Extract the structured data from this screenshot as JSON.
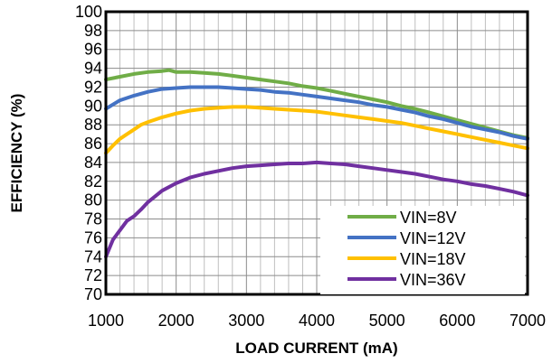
{
  "chart_data": {
    "type": "line",
    "title": "",
    "xlabel": "LOAD CURRENT (mA)",
    "ylabel": "EFFICIENCY (%)",
    "xlim": [
      1000,
      7000
    ],
    "ylim": [
      70,
      100
    ],
    "xticks": [
      1000,
      2000,
      3000,
      4000,
      5000,
      6000,
      7000
    ],
    "yticks": [
      70,
      72,
      74,
      76,
      78,
      80,
      82,
      84,
      86,
      88,
      90,
      92,
      94,
      96,
      98,
      100
    ],
    "x_minor_step": 200,
    "grid": true,
    "legend_position": "bottom-right",
    "series": [
      {
        "name": "VIN=8V",
        "color": "#70ad47",
        "x": [
          1000,
          1200,
          1400,
          1600,
          1800,
          1900,
          2000,
          2200,
          2400,
          2600,
          2800,
          3000,
          3200,
          3400,
          3600,
          3800,
          4000,
          4200,
          4400,
          4600,
          4800,
          5000,
          5200,
          5400,
          5600,
          5800,
          6000,
          6200,
          6400,
          6600,
          6800,
          7000
        ],
        "y": [
          92.8,
          93.1,
          93.4,
          93.6,
          93.7,
          93.8,
          93.6,
          93.6,
          93.5,
          93.4,
          93.2,
          93.0,
          92.8,
          92.6,
          92.4,
          92.1,
          91.9,
          91.6,
          91.3,
          91.0,
          90.7,
          90.4,
          90.0,
          89.7,
          89.3,
          88.9,
          88.5,
          88.1,
          87.7,
          87.3,
          86.9,
          86.6
        ]
      },
      {
        "name": "VIN=12V",
        "color": "#4472c4",
        "x": [
          1000,
          1200,
          1400,
          1600,
          1800,
          2000,
          2200,
          2400,
          2600,
          2800,
          3000,
          3200,
          3400,
          3600,
          3800,
          4000,
          4200,
          4400,
          4600,
          4800,
          5000,
          5200,
          5400,
          5600,
          5800,
          6000,
          6200,
          6400,
          6600,
          6800,
          7000
        ],
        "y": [
          89.7,
          90.6,
          91.1,
          91.5,
          91.8,
          91.9,
          92.0,
          92.0,
          92.0,
          91.9,
          91.8,
          91.7,
          91.5,
          91.4,
          91.2,
          91.0,
          90.8,
          90.6,
          90.4,
          90.1,
          89.9,
          89.6,
          89.3,
          88.9,
          88.6,
          88.2,
          87.8,
          87.5,
          87.2,
          86.8,
          86.5
        ]
      },
      {
        "name": "VIN=18V",
        "color": "#ffc000",
        "x": [
          1000,
          1100,
          1200,
          1300,
          1400,
          1500,
          1600,
          1800,
          2000,
          2200,
          2400,
          2600,
          2800,
          3000,
          3200,
          3400,
          3600,
          3800,
          4000,
          4200,
          4400,
          4600,
          4800,
          5000,
          5200,
          5400,
          5600,
          5800,
          6000,
          6200,
          6400,
          6600,
          6800,
          7000
        ],
        "y": [
          85.0,
          85.8,
          86.5,
          87.0,
          87.5,
          88.0,
          88.3,
          88.8,
          89.2,
          89.5,
          89.7,
          89.8,
          89.9,
          89.9,
          89.8,
          89.7,
          89.6,
          89.5,
          89.4,
          89.2,
          89.0,
          88.8,
          88.6,
          88.4,
          88.2,
          87.9,
          87.6,
          87.3,
          87.0,
          86.7,
          86.4,
          86.1,
          85.8,
          85.5
        ]
      },
      {
        "name": "VIN=36V",
        "color": "#7030a0",
        "x": [
          1000,
          1100,
          1200,
          1300,
          1400,
          1500,
          1600,
          1800,
          2000,
          2200,
          2400,
          2600,
          2800,
          3000,
          3200,
          3400,
          3600,
          3800,
          4000,
          4200,
          4400,
          4600,
          4800,
          5000,
          5200,
          5400,
          5600,
          5800,
          6000,
          6200,
          6400,
          6600,
          6800,
          7000
        ],
        "y": [
          74.0,
          75.8,
          76.8,
          77.8,
          78.3,
          79.0,
          79.8,
          81.0,
          81.8,
          82.4,
          82.8,
          83.1,
          83.4,
          83.6,
          83.7,
          83.8,
          83.9,
          83.9,
          84.0,
          83.9,
          83.8,
          83.6,
          83.4,
          83.2,
          83.0,
          82.8,
          82.5,
          82.2,
          82.0,
          81.7,
          81.5,
          81.2,
          80.9,
          80.5
        ]
      }
    ]
  }
}
